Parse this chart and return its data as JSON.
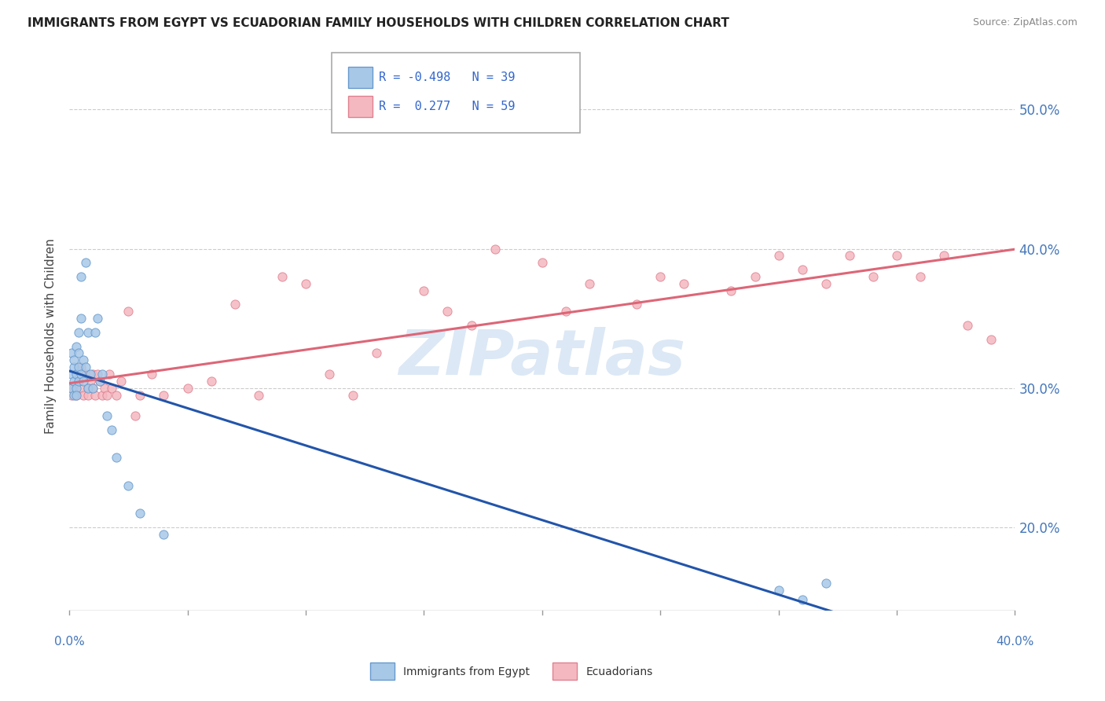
{
  "title": "IMMIGRANTS FROM EGYPT VS ECUADORIAN FAMILY HOUSEHOLDS WITH CHILDREN CORRELATION CHART",
  "source": "Source: ZipAtlas.com",
  "ylabel": "Family Households with Children",
  "x_range": [
    0.0,
    0.4
  ],
  "y_range": [
    0.14,
    0.535
  ],
  "y_ticks": [
    0.2,
    0.3,
    0.4,
    0.5
  ],
  "y_tick_labels": [
    "20.0%",
    "30.0%",
    "40.0%",
    "50.0%"
  ],
  "legend_label_blue": "Immigrants from Egypt",
  "legend_label_pink": "Ecuadorians",
  "blue_scatter_color": "#a8c8e8",
  "blue_edge_color": "#6699cc",
  "pink_scatter_color": "#f4b8c0",
  "pink_edge_color": "#e08090",
  "trend_blue_color": "#2255aa",
  "trend_pink_color": "#dd6677",
  "grid_color": "#cccccc",
  "watermark_color": "#dce8f5",
  "blue_x": [
    0.001,
    0.001,
    0.001,
    0.002,
    0.002,
    0.002,
    0.002,
    0.003,
    0.003,
    0.003,
    0.003,
    0.004,
    0.004,
    0.004,
    0.004,
    0.005,
    0.005,
    0.005,
    0.006,
    0.006,
    0.007,
    0.007,
    0.008,
    0.008,
    0.009,
    0.01,
    0.011,
    0.012,
    0.013,
    0.014,
    0.016,
    0.018,
    0.02,
    0.025,
    0.03,
    0.04,
    0.3,
    0.31,
    0.32
  ],
  "blue_y": [
    0.3,
    0.31,
    0.325,
    0.295,
    0.305,
    0.315,
    0.32,
    0.3,
    0.31,
    0.295,
    0.33,
    0.305,
    0.315,
    0.325,
    0.34,
    0.31,
    0.35,
    0.38,
    0.305,
    0.32,
    0.315,
    0.39,
    0.3,
    0.34,
    0.31,
    0.3,
    0.34,
    0.35,
    0.305,
    0.31,
    0.28,
    0.27,
    0.25,
    0.23,
    0.21,
    0.195,
    0.155,
    0.148,
    0.16
  ],
  "pink_x": [
    0.001,
    0.002,
    0.003,
    0.004,
    0.005,
    0.005,
    0.006,
    0.007,
    0.008,
    0.008,
    0.009,
    0.01,
    0.01,
    0.011,
    0.012,
    0.013,
    0.014,
    0.015,
    0.016,
    0.017,
    0.018,
    0.02,
    0.022,
    0.025,
    0.028,
    0.03,
    0.035,
    0.04,
    0.05,
    0.06,
    0.07,
    0.08,
    0.09,
    0.1,
    0.11,
    0.12,
    0.13,
    0.15,
    0.16,
    0.17,
    0.18,
    0.2,
    0.21,
    0.22,
    0.24,
    0.25,
    0.26,
    0.28,
    0.29,
    0.3,
    0.31,
    0.32,
    0.33,
    0.34,
    0.35,
    0.36,
    0.37,
    0.38,
    0.39
  ],
  "pink_y": [
    0.295,
    0.3,
    0.295,
    0.305,
    0.3,
    0.315,
    0.295,
    0.31,
    0.3,
    0.295,
    0.305,
    0.3,
    0.31,
    0.295,
    0.31,
    0.305,
    0.295,
    0.3,
    0.295,
    0.31,
    0.3,
    0.295,
    0.305,
    0.355,
    0.28,
    0.295,
    0.31,
    0.295,
    0.3,
    0.305,
    0.36,
    0.295,
    0.38,
    0.375,
    0.31,
    0.295,
    0.325,
    0.37,
    0.355,
    0.345,
    0.4,
    0.39,
    0.355,
    0.375,
    0.36,
    0.38,
    0.375,
    0.37,
    0.38,
    0.395,
    0.385,
    0.375,
    0.395,
    0.38,
    0.395,
    0.38,
    0.395,
    0.345,
    0.335
  ]
}
